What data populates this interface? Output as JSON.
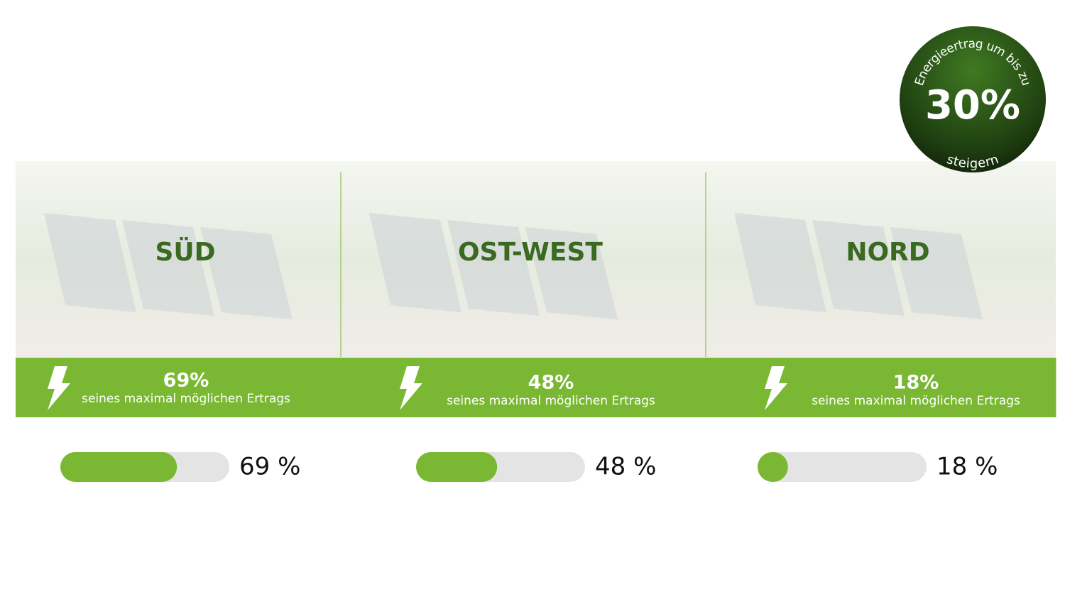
{
  "badge": {
    "arc_text": "Energieertrag um bis zu",
    "value_label": "30%",
    "bottom_text": "steigern"
  },
  "bar_range": [
    0,
    100
  ],
  "panels": [
    {
      "title": "SÜD",
      "percent_label": "69%",
      "caption": "seines maximal möglichen Ertrags",
      "value": 69,
      "value_label": "69 %"
    },
    {
      "title": "OST-WEST",
      "percent_label": "48%",
      "caption": "seines maximal möglichen Ertrags",
      "value": 48,
      "value_label": "48 %"
    },
    {
      "title": "NORD",
      "percent_label": "18%",
      "caption": "seines maximal möglichen Ertrags",
      "value": 18,
      "value_label": "18 %"
    }
  ]
}
